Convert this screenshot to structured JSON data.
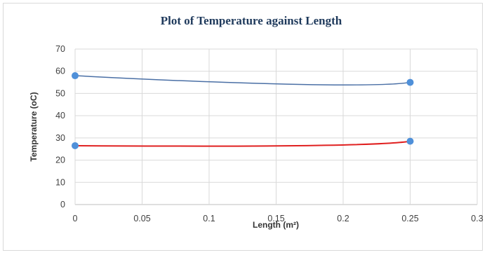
{
  "chart_data": {
    "type": "line",
    "title": "Plot of Temperature against Length",
    "xlabel": "Length (m²)",
    "ylabel": "Temperature (oC)",
    "xlim": [
      0,
      0.3
    ],
    "ylim": [
      0,
      70
    ],
    "x_ticks": [
      "0",
      "0.05",
      "0.1",
      "0.15",
      "0.2",
      "0.25",
      "0.3"
    ],
    "y_ticks": [
      "0",
      "10",
      "20",
      "30",
      "40",
      "50",
      "60",
      "70"
    ],
    "grid": true,
    "legend": "none",
    "series": [
      {
        "color": "#4a6fa5",
        "marker_color": "#4f90d9",
        "smooth": true,
        "points": [
          {
            "x": 0,
            "y": 58
          },
          {
            "x": 0.25,
            "y": 55
          }
        ]
      },
      {
        "color": "#e02020",
        "marker_color": "#4f90d9",
        "smooth": true,
        "points": [
          {
            "x": 0,
            "y": 26.5
          },
          {
            "x": 0.25,
            "y": 28.5
          }
        ]
      }
    ]
  }
}
